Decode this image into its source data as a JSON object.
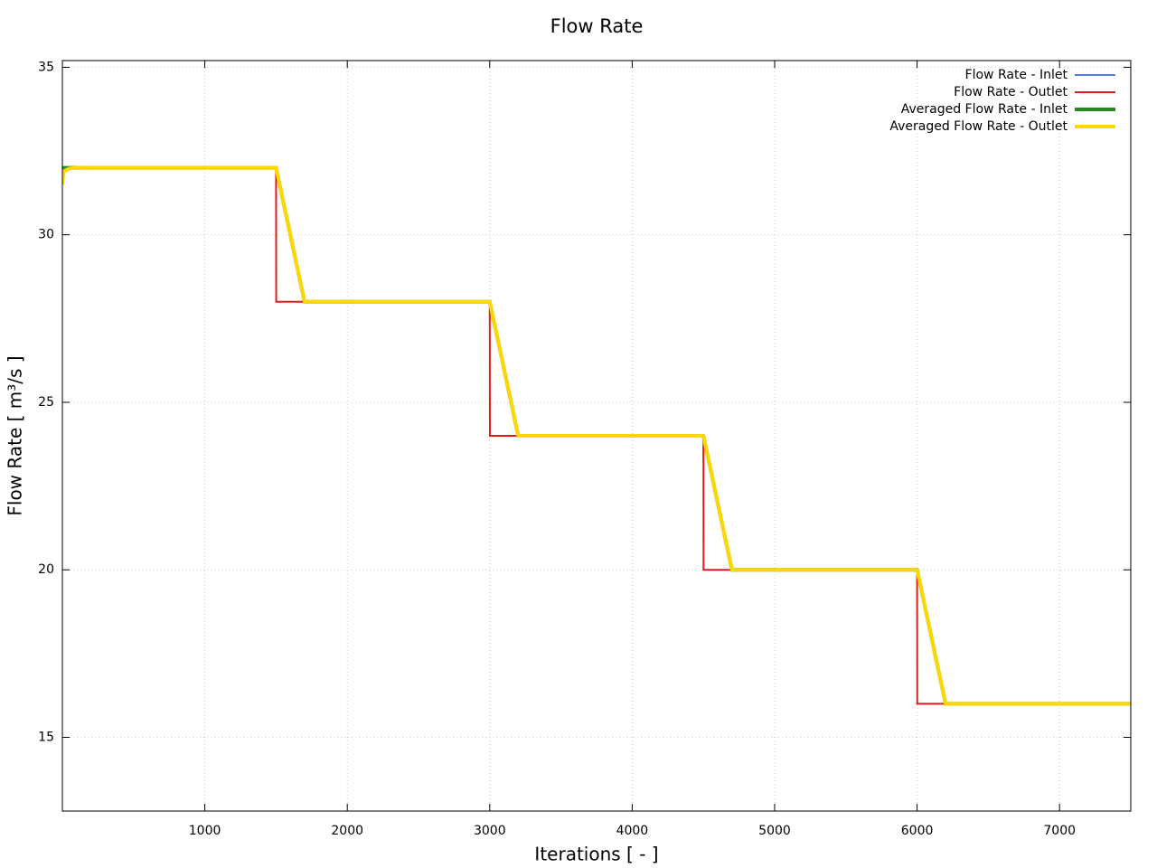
{
  "chart_data": {
    "type": "line",
    "title": "Flow Rate",
    "xlabel": "Iterations [ - ]",
    "ylabel": "Flow Rate [ m³/s ]",
    "x": [
      0,
      10,
      50,
      100,
      1500,
      1501,
      1700,
      3000,
      3001,
      3200,
      4500,
      4501,
      4700,
      6000,
      6001,
      6200,
      7500
    ],
    "series": [
      {
        "name": "Flow Rate - Inlet",
        "color": "#4f7fe6",
        "width": 2,
        "values": [
          32,
          32,
          32,
          32,
          32,
          31.98,
          28,
          28,
          27.98,
          24,
          24,
          23.98,
          20,
          20,
          19.98,
          16,
          16
        ]
      },
      {
        "name": "Flow Rate - Outlet",
        "color": "#e31a1c",
        "width": 2,
        "values": [
          32,
          32,
          32,
          32,
          32,
          28,
          28,
          28,
          24,
          24,
          24,
          20,
          20,
          20,
          16,
          16,
          16
        ]
      },
      {
        "name": "Averaged Flow Rate - Inlet",
        "color": "#228b22",
        "width": 4,
        "values": [
          32,
          32,
          32,
          32,
          32,
          31.98,
          28,
          28,
          27.98,
          24,
          24,
          23.98,
          20,
          20,
          19.98,
          16,
          16
        ]
      },
      {
        "name": "Averaged Flow Rate - Outlet",
        "color": "#ffd700",
        "width": 4,
        "values": [
          31.5,
          31.9,
          31.98,
          32,
          32,
          31.98,
          28,
          28,
          27.98,
          24,
          24,
          23.98,
          20,
          20,
          19.98,
          16,
          16
        ]
      }
    ],
    "xlim": [
      0,
      7500
    ],
    "xticks": [
      1000,
      2000,
      3000,
      4000,
      5000,
      6000,
      7000
    ],
    "ylim": [
      12.8,
      35.2
    ],
    "yticks": [
      15,
      20,
      25,
      30,
      35
    ],
    "grid": true,
    "legend": "top-right"
  }
}
